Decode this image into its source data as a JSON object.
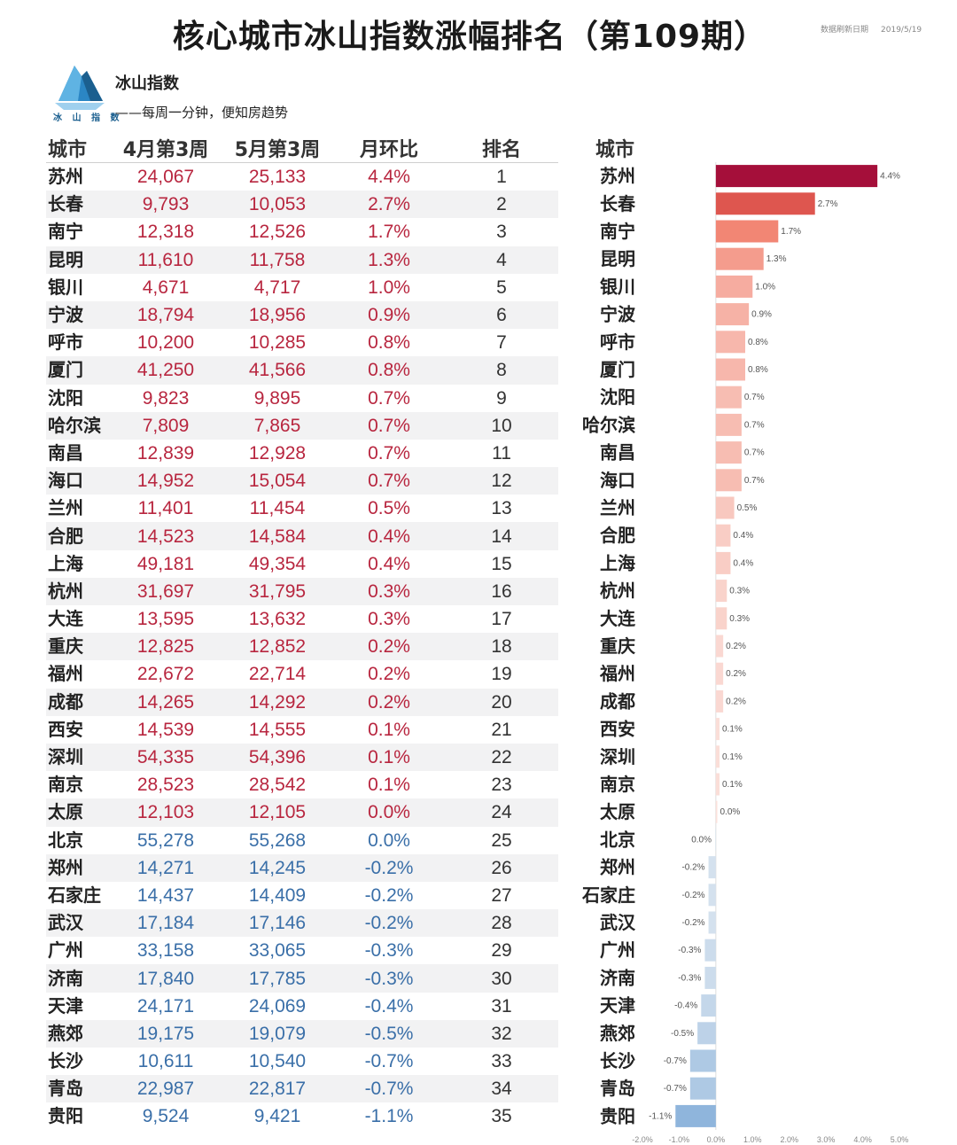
{
  "title": "核心城市冰山指数涨幅排名（第109期）",
  "update": {
    "label": "数据刷新日期",
    "date": "2019/5/19"
  },
  "brand": {
    "name": "冰山指数",
    "slogan": "——每周一分钟，便知房趋势",
    "logo_text": "冰 山 指 数",
    "logo_icon": "iceberg-icon"
  },
  "table": {
    "headers": [
      "城市",
      "4月第3周",
      "5月第3周",
      "月环比",
      "排名"
    ],
    "rows": [
      {
        "city": "苏州",
        "apr": "24,067",
        "may": "25,133",
        "mom": "4.4%",
        "rank": "1"
      },
      {
        "city": "长春",
        "apr": "9,793",
        "may": "10,053",
        "mom": "2.7%",
        "rank": "2"
      },
      {
        "city": "南宁",
        "apr": "12,318",
        "may": "12,526",
        "mom": "1.7%",
        "rank": "3"
      },
      {
        "city": "昆明",
        "apr": "11,610",
        "may": "11,758",
        "mom": "1.3%",
        "rank": "4"
      },
      {
        "city": "银川",
        "apr": "4,671",
        "may": "4,717",
        "mom": "1.0%",
        "rank": "5"
      },
      {
        "city": "宁波",
        "apr": "18,794",
        "may": "18,956",
        "mom": "0.9%",
        "rank": "6"
      },
      {
        "city": "呼市",
        "apr": "10,200",
        "may": "10,285",
        "mom": "0.8%",
        "rank": "7"
      },
      {
        "city": "厦门",
        "apr": "41,250",
        "may": "41,566",
        "mom": "0.8%",
        "rank": "8"
      },
      {
        "city": "沈阳",
        "apr": "9,823",
        "may": "9,895",
        "mom": "0.7%",
        "rank": "9"
      },
      {
        "city": "哈尔滨",
        "apr": "7,809",
        "may": "7,865",
        "mom": "0.7%",
        "rank": "10"
      },
      {
        "city": "南昌",
        "apr": "12,839",
        "may": "12,928",
        "mom": "0.7%",
        "rank": "11"
      },
      {
        "city": "海口",
        "apr": "14,952",
        "may": "15,054",
        "mom": "0.7%",
        "rank": "12"
      },
      {
        "city": "兰州",
        "apr": "11,401",
        "may": "11,454",
        "mom": "0.5%",
        "rank": "13"
      },
      {
        "city": "合肥",
        "apr": "14,523",
        "may": "14,584",
        "mom": "0.4%",
        "rank": "14"
      },
      {
        "city": "上海",
        "apr": "49,181",
        "may": "49,354",
        "mom": "0.4%",
        "rank": "15"
      },
      {
        "city": "杭州",
        "apr": "31,697",
        "may": "31,795",
        "mom": "0.3%",
        "rank": "16"
      },
      {
        "city": "大连",
        "apr": "13,595",
        "may": "13,632",
        "mom": "0.3%",
        "rank": "17"
      },
      {
        "city": "重庆",
        "apr": "12,825",
        "may": "12,852",
        "mom": "0.2%",
        "rank": "18"
      },
      {
        "city": "福州",
        "apr": "22,672",
        "may": "22,714",
        "mom": "0.2%",
        "rank": "19"
      },
      {
        "city": "成都",
        "apr": "14,265",
        "may": "14,292",
        "mom": "0.2%",
        "rank": "20"
      },
      {
        "city": "西安",
        "apr": "14,539",
        "may": "14,555",
        "mom": "0.1%",
        "rank": "21"
      },
      {
        "city": "深圳",
        "apr": "54,335",
        "may": "54,396",
        "mom": "0.1%",
        "rank": "22"
      },
      {
        "city": "南京",
        "apr": "28,523",
        "may": "28,542",
        "mom": "0.1%",
        "rank": "23"
      },
      {
        "city": "太原",
        "apr": "12,103",
        "may": "12,105",
        "mom": "0.0%",
        "rank": "24"
      },
      {
        "city": "北京",
        "apr": "55,278",
        "may": "55,268",
        "mom": "0.0%",
        "rank": "25"
      },
      {
        "city": "郑州",
        "apr": "14,271",
        "may": "14,245",
        "mom": "-0.2%",
        "rank": "26"
      },
      {
        "city": "石家庄",
        "apr": "14,437",
        "may": "14,409",
        "mom": "-0.2%",
        "rank": "27"
      },
      {
        "city": "武汉",
        "apr": "17,184",
        "may": "17,146",
        "mom": "-0.2%",
        "rank": "28"
      },
      {
        "city": "广州",
        "apr": "33,158",
        "may": "33,065",
        "mom": "-0.3%",
        "rank": "29"
      },
      {
        "city": "济南",
        "apr": "17,840",
        "may": "17,785",
        "mom": "-0.3%",
        "rank": "30"
      },
      {
        "city": "天津",
        "apr": "24,171",
        "may": "24,069",
        "mom": "-0.4%",
        "rank": "31"
      },
      {
        "city": "燕郊",
        "apr": "19,175",
        "may": "19,079",
        "mom": "-0.5%",
        "rank": "32"
      },
      {
        "city": "长沙",
        "apr": "10,611",
        "may": "10,540",
        "mom": "-0.7%",
        "rank": "33"
      },
      {
        "city": "青岛",
        "apr": "22,987",
        "may": "22,817",
        "mom": "-0.7%",
        "rank": "34"
      },
      {
        "city": "贵阳",
        "apr": "9,524",
        "may": "9,421",
        "mom": "-1.1%",
        "rank": "35"
      }
    ]
  },
  "chart_data": {
    "type": "bar",
    "orientation": "horizontal",
    "title": "城市",
    "xlabel": "",
    "ylabel": "城市",
    "categories": [
      "苏州",
      "长春",
      "南宁",
      "昆明",
      "银川",
      "宁波",
      "呼市",
      "厦门",
      "沈阳",
      "哈尔滨",
      "南昌",
      "海口",
      "兰州",
      "合肥",
      "上海",
      "杭州",
      "大连",
      "重庆",
      "福州",
      "成都",
      "西安",
      "深圳",
      "南京",
      "太原",
      "北京",
      "郑州",
      "石家庄",
      "武汉",
      "广州",
      "济南",
      "天津",
      "燕郊",
      "长沙",
      "青岛",
      "贵阳"
    ],
    "values": [
      4.4,
      2.7,
      1.7,
      1.3,
      1.0,
      0.9,
      0.8,
      0.8,
      0.7,
      0.7,
      0.7,
      0.7,
      0.5,
      0.4,
      0.4,
      0.3,
      0.3,
      0.2,
      0.2,
      0.2,
      0.1,
      0.1,
      0.1,
      0.04,
      -0.02,
      -0.2,
      -0.2,
      -0.2,
      -0.3,
      -0.3,
      -0.4,
      -0.5,
      -0.7,
      -0.7,
      -1.1
    ],
    "value_labels": [
      "4.4%",
      "2.7%",
      "1.7%",
      "1.3%",
      "1.0%",
      "0.9%",
      "0.8%",
      "0.8%",
      "0.7%",
      "0.7%",
      "0.7%",
      "0.7%",
      "0.5%",
      "0.4%",
      "0.4%",
      "0.3%",
      "0.3%",
      "0.2%",
      "0.2%",
      "0.2%",
      "0.1%",
      "0.1%",
      "0.1%",
      "0.0%",
      "0.0%",
      "-0.2%",
      "-0.2%",
      "-0.2%",
      "-0.3%",
      "-0.3%",
      "-0.4%",
      "-0.5%",
      "-0.7%",
      "-0.7%",
      "-1.1%"
    ],
    "xlim": [
      -2.0,
      5.0
    ],
    "xticks": [
      -2.0,
      -1.0,
      0.0,
      1.0,
      2.0,
      3.0,
      4.0,
      5.0
    ],
    "xtick_labels": [
      "-2.0%",
      "-1.0%",
      "0.0%",
      "1.0%",
      "2.0%",
      "3.0%",
      "4.0%",
      "5.0%"
    ],
    "colors": {
      "pos_max": "#a50f3a",
      "pos_mid": "#ef6b55",
      "pos_min": "#fbe3de",
      "neg_min": "#e3ebf2",
      "neg_max": "#8fb5dc"
    },
    "grid": false
  },
  "colors": {
    "positive_text": "#b8263f",
    "negative_text": "#3a6fa8"
  }
}
